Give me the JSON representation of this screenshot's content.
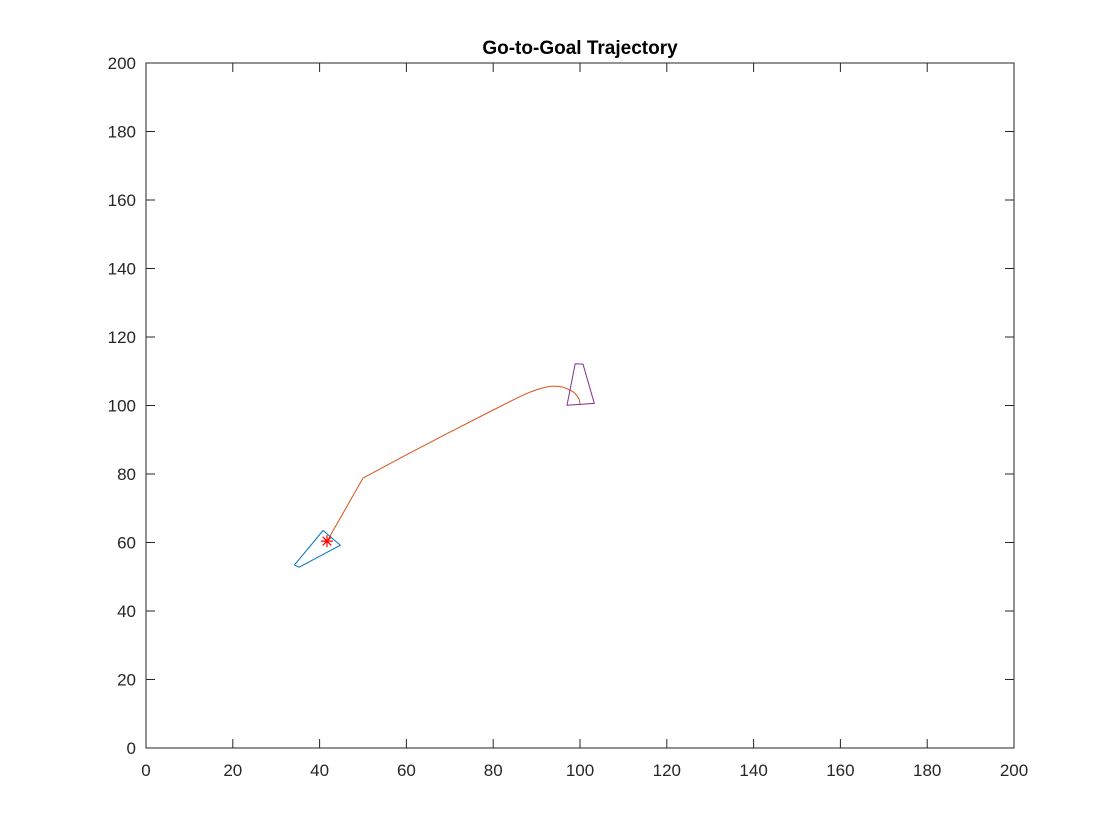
{
  "chart_data": {
    "type": "line",
    "title": "Go-to-Goal Trajectory",
    "xlabel": "",
    "ylabel": "",
    "xlim": [
      0,
      200
    ],
    "ylim": [
      0,
      200
    ],
    "xticks": [
      0,
      20,
      40,
      60,
      80,
      100,
      120,
      140,
      160,
      180,
      200
    ],
    "yticks": [
      0,
      20,
      40,
      60,
      80,
      100,
      120,
      140,
      160,
      180,
      200
    ],
    "grid": false,
    "legend": "none",
    "box": true,
    "series": [
      {
        "kind": "trajectory",
        "color": "#D95319",
        "points": [
          [
            100.0,
            100.5
          ],
          [
            99.8,
            101.8
          ],
          [
            99.3,
            102.9
          ],
          [
            98.5,
            103.9
          ],
          [
            97.4,
            104.7
          ],
          [
            96.2,
            105.3
          ],
          [
            94.8,
            105.6
          ],
          [
            93.4,
            105.6
          ],
          [
            92.0,
            105.3
          ],
          [
            90.4,
            104.8
          ],
          [
            88.5,
            103.9
          ],
          [
            86.0,
            102.5
          ],
          [
            80.0,
            98.7
          ],
          [
            70.0,
            92.2
          ],
          [
            60.0,
            85.6
          ],
          [
            50.0,
            78.8
          ],
          [
            42.0,
            61.0
          ]
        ]
      },
      {
        "kind": "start-pose-outline",
        "color": "#0072BD",
        "points": [
          [
            34.2,
            53.4
          ],
          [
            40.8,
            63.5
          ],
          [
            44.8,
            59.2
          ],
          [
            35.3,
            52.8
          ],
          [
            34.2,
            53.4
          ]
        ]
      },
      {
        "kind": "goal-pose-outline",
        "color": "#7E2F8E",
        "points": [
          [
            98.9,
            112.2
          ],
          [
            100.7,
            112.1
          ],
          [
            103.3,
            100.6
          ],
          [
            97.0,
            100.1
          ],
          [
            98.9,
            112.2
          ]
        ]
      },
      {
        "kind": "marker",
        "marker": "asterisk",
        "color": "#FF0000",
        "points": [
          [
            41.7,
            60.4
          ]
        ]
      }
    ]
  }
}
